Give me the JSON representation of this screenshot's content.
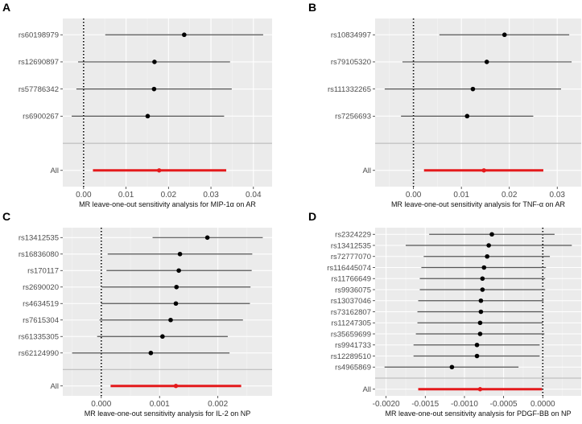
{
  "colors": {
    "panel_bg": "#ebebeb",
    "grid": "#ffffff",
    "ci": "#555555",
    "point": "#000000",
    "overall": "#e41a1c",
    "divider": "#b5b5b5"
  },
  "chart_data": [
    {
      "type": "forest",
      "panel_label": "A",
      "xlabel": "MR leave-one-out sensitivity analysis for MIP-1α on AR",
      "xlim": [
        -0.0049,
        0.0444
      ],
      "xticks": [
        0,
        0.01,
        0.02,
        0.03,
        0.04
      ],
      "xtick_labels": [
        "0.00",
        "0.01",
        "0.02",
        "0.03",
        "0.04"
      ],
      "reference_line": 0,
      "snps": [
        {
          "label": "rs60198979",
          "b": 0.0237,
          "lo": 0.0051,
          "hi": 0.0423
        },
        {
          "label": "rs12690897",
          "b": 0.0167,
          "lo": -0.0013,
          "hi": 0.0345
        },
        {
          "label": "rs57786342",
          "b": 0.0166,
          "lo": -0.0017,
          "hi": 0.0349
        },
        {
          "label": "rs6900267",
          "b": 0.0151,
          "lo": -0.0028,
          "hi": 0.0331
        }
      ],
      "overall": {
        "label": "All",
        "b": 0.0178,
        "lo": 0.0022,
        "hi": 0.0336
      }
    },
    {
      "type": "forest",
      "panel_label": "B",
      "xlabel": "MR leave-one-out sensitivity analysis for TNF-α on AR",
      "xlim": [
        -0.008,
        0.035
      ],
      "xticks": [
        0,
        0.01,
        0.02,
        0.03
      ],
      "xtick_labels": [
        "0.00",
        "0.01",
        "0.02",
        "0.03"
      ],
      "reference_line": 0,
      "snps": [
        {
          "label": "rs10834997",
          "b": 0.019,
          "lo": 0.0054,
          "hi": 0.0325
        },
        {
          "label": "rs79105320",
          "b": 0.0153,
          "lo": -0.0023,
          "hi": 0.033
        },
        {
          "label": "rs111332265",
          "b": 0.0124,
          "lo": -0.006,
          "hi": 0.0308
        },
        {
          "label": "rs7256693",
          "b": 0.0112,
          "lo": -0.0026,
          "hi": 0.025
        }
      ],
      "overall": {
        "label": "All",
        "b": 0.0147,
        "lo": 0.0022,
        "hi": 0.0271
      }
    },
    {
      "type": "forest",
      "panel_label": "C",
      "xlabel": "MR leave-one-out sensitivity analysis for IL-2 on NP",
      "xlim": [
        -0.00066,
        0.00293
      ],
      "xticks": [
        0,
        0.001,
        0.002
      ],
      "xtick_labels": [
        "0.000",
        "0.001",
        "0.002"
      ],
      "reference_line": 0,
      "snps": [
        {
          "label": "rs13412535",
          "b": 0.00182,
          "lo": 0.00088,
          "hi": 0.00277
        },
        {
          "label": "rs16836080",
          "b": 0.00135,
          "lo": 0.00011,
          "hi": 0.00259
        },
        {
          "label": "rs170117",
          "b": 0.00133,
          "lo": 9e-05,
          "hi": 0.00258
        },
        {
          "label": "rs2690020",
          "b": 0.00129,
          "lo": 1e-05,
          "hi": 0.00256
        },
        {
          "label": "rs4634519",
          "b": 0.00128,
          "lo": 0.0,
          "hi": 0.00255
        },
        {
          "label": "rs7615304",
          "b": 0.00119,
          "lo": -3e-05,
          "hi": 0.00243
        },
        {
          "label": "rs61335305",
          "b": 0.00105,
          "lo": -7e-05,
          "hi": 0.00217
        },
        {
          "label": "rs62124990",
          "b": 0.00085,
          "lo": -0.0005,
          "hi": 0.0022
        }
      ],
      "overall": {
        "label": "All",
        "b": 0.00128,
        "lo": 0.00016,
        "hi": 0.0024
      }
    },
    {
      "type": "forest",
      "panel_label": "D",
      "xlabel": "MR leave-one-out sensitivity analysis for PDGF-BB on NP",
      "xlim": [
        -0.00214,
        0.00049
      ],
      "xticks": [
        -0.002,
        -0.0015,
        -0.001,
        -0.0005,
        0
      ],
      "xtick_labels": [
        "-0.0020",
        "-0.0015",
        "-0.0010",
        "-0.0005",
        "0.0000"
      ],
      "reference_line": 0,
      "snps": [
        {
          "label": "rs2324229",
          "b": -0.00065,
          "lo": -0.00145,
          "hi": 0.00015
        },
        {
          "label": "rs13412535",
          "b": -0.00069,
          "lo": -0.00175,
          "hi": 0.00037
        },
        {
          "label": "rs72777070",
          "b": -0.00071,
          "lo": -0.00152,
          "hi": 9e-05
        },
        {
          "label": "rs116445074",
          "b": -0.00075,
          "lo": -0.00155,
          "hi": 4e-05
        },
        {
          "label": "rs11766649",
          "b": -0.00077,
          "lo": -0.00157,
          "hi": 3e-05
        },
        {
          "label": "rs9936075",
          "b": -0.00077,
          "lo": -0.00157,
          "hi": 3e-05
        },
        {
          "label": "rs13037046",
          "b": -0.00079,
          "lo": -0.00159,
          "hi": 1e-05
        },
        {
          "label": "rs73162807",
          "b": -0.00079,
          "lo": -0.0016,
          "hi": 0.0
        },
        {
          "label": "rs11247305",
          "b": -0.0008,
          "lo": -0.0016,
          "hi": 0.0
        },
        {
          "label": "rs35659699",
          "b": -0.0008,
          "lo": -0.00162,
          "hi": 2e-05
        },
        {
          "label": "rs9941733",
          "b": -0.00084,
          "lo": -0.00165,
          "hi": -4e-05
        },
        {
          "label": "rs12289510",
          "b": -0.00084,
          "lo": -0.00165,
          "hi": -4e-05
        },
        {
          "label": "rs4965869",
          "b": -0.00116,
          "lo": -0.00202,
          "hi": -0.00031
        }
      ],
      "overall": {
        "label": "All",
        "b": -0.0008,
        "lo": -0.00159,
        "hi": -1e-05
      }
    }
  ]
}
